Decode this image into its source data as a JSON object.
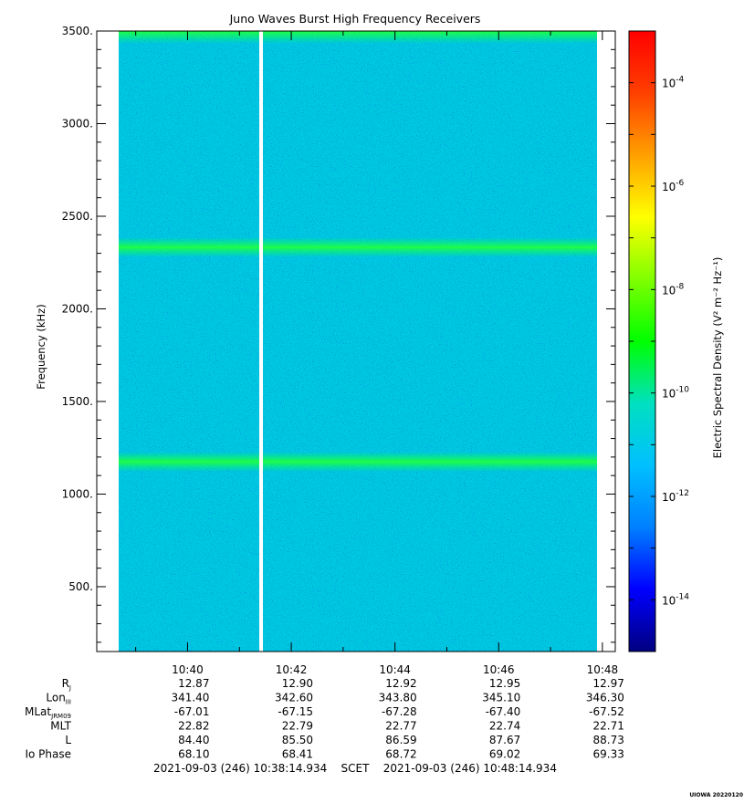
{
  "chart_data": {
    "type": "heatmap",
    "title": "Juno Waves Burst High Frequency Receivers",
    "ylabel": "Frequency (kHz)",
    "ylim": [
      150,
      3500
    ],
    "y_ticks": [
      500,
      1000,
      1500,
      2000,
      2500,
      3000,
      3500
    ],
    "y_tick_labels": [
      "500.",
      "1000.",
      "1500.",
      "2000.",
      "2500.",
      "3000.",
      "3500."
    ],
    "x_tick_labels": [
      "10:40",
      "10:42",
      "10:44",
      "10:46",
      "10:48"
    ],
    "time_range_label": "2021-09-03 (246) 10:38:14.934    SCET    2021-09-03 (246) 10:48:14.934",
    "colorbar": {
      "label": "Electric Spectral Density (V² m⁻² Hz⁻¹)",
      "scale": "log",
      "range": [
        1e-15,
        0.001
      ],
      "ticks": [
        {
          "base": "10",
          "exp": "-4",
          "log": -4
        },
        {
          "base": "10",
          "exp": "-6",
          "log": -6
        },
        {
          "base": "10",
          "exp": "-8",
          "log": -8
        },
        {
          "base": "10",
          "exp": "-10",
          "log": -10
        },
        {
          "base": "10",
          "exp": "-12",
          "log": -12
        },
        {
          "base": "10",
          "exp": "-14",
          "log": -14
        }
      ],
      "colors": [
        "#000080",
        "#0000ff",
        "#0080ff",
        "#00c0ff",
        "#00e0c0",
        "#00ff00",
        "#80ff00",
        "#ffff00",
        "#ffa000",
        "#ff4000",
        "#ff0000"
      ]
    },
    "spectrogram": {
      "background_level": "~1e-12",
      "features": [
        {
          "name": "emission band",
          "frequency_khz": 2330,
          "level": "~1e-10"
        },
        {
          "name": "emission band",
          "frequency_khz": 1170,
          "level": "~1e-10"
        },
        {
          "name": "top edge band",
          "frequency_khz": 3490,
          "level": "~1e-10"
        }
      ],
      "data_gap_time": "10:41:40",
      "data_start": "10:38:40",
      "data_end": "10:48:00"
    },
    "ephemeris": {
      "rows": [
        {
          "label": "R",
          "sub": "J",
          "values": [
            "12.87",
            "12.90",
            "12.92",
            "12.95",
            "12.97"
          ]
        },
        {
          "label": "Lon",
          "sub": "III",
          "values": [
            "341.40",
            "342.60",
            "343.80",
            "345.10",
            "346.30"
          ]
        },
        {
          "label": "MLat",
          "sub": "JRM09",
          "values": [
            "-67.01",
            "-67.15",
            "-67.28",
            "-67.40",
            "-67.52"
          ]
        },
        {
          "label": "MLT",
          "sub": "",
          "values": [
            "22.82",
            "22.79",
            "22.77",
            "22.74",
            "22.71"
          ]
        },
        {
          "label": "L",
          "sub": "",
          "values": [
            "84.40",
            "85.50",
            "86.59",
            "87.67",
            "88.73"
          ]
        },
        {
          "label": "Io Phase",
          "sub": "",
          "values": [
            "68.10",
            "68.41",
            "68.72",
            "69.02",
            "69.33"
          ]
        }
      ]
    },
    "footer_tag": "UIOWA 20220120"
  }
}
